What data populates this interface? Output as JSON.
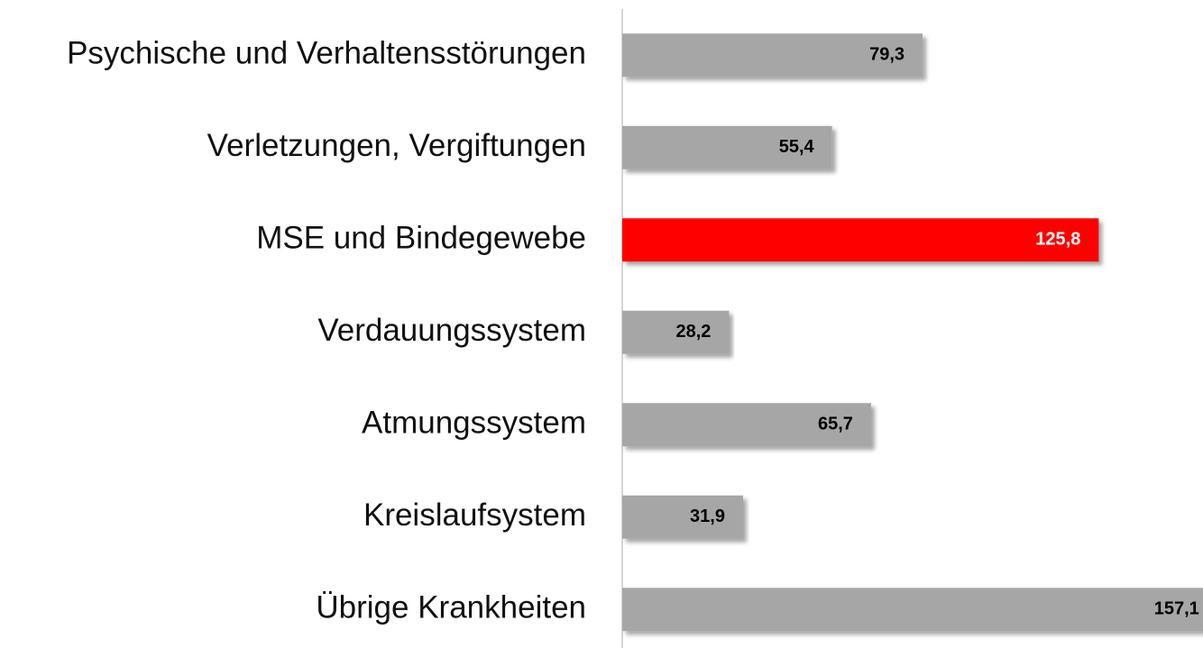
{
  "chart_data": {
    "type": "barh",
    "categories": [
      "Psychische und Verhaltensstörungen",
      "Verletzungen, Vergiftungen",
      "MSE und Bindegewebe",
      "Verdauungssystem",
      "Atmungssystem",
      "Kreislaufsystem",
      "Übrige Krankheiten"
    ],
    "values": [
      79.3,
      55.4,
      125.8,
      28.2,
      65.7,
      31.9,
      157.1
    ],
    "value_labels": [
      "79,3",
      "55,4",
      "125,8",
      "28,2",
      "65,7",
      "31,9",
      "157,1"
    ],
    "colors": [
      "#a6a6a6",
      "#a6a6a6",
      "#ff0000",
      "#a6a6a6",
      "#a6a6a6",
      "#a6a6a6",
      "#a6a6a6"
    ],
    "value_label_colors": [
      "#000000",
      "#000000",
      "#ffffff",
      "#000000",
      "#000000",
      "#000000",
      "#000000"
    ]
  }
}
